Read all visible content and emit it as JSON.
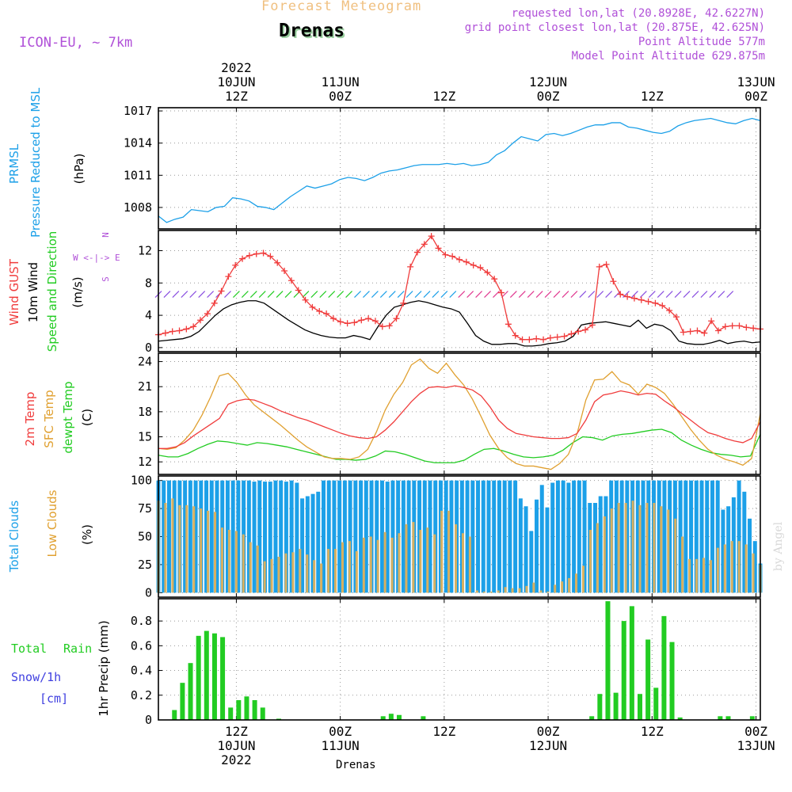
{
  "header": {
    "product": "Forecast Meteogram",
    "station": "Drenas",
    "model": "ICON-EU, ~ 7km",
    "requested": "requested lon,lat (20.8928E, 42.6227N)",
    "grid_point": "grid point closest lon,lat (20.875E, 42.625N)",
    "point_altitude": "Point Altitude 577m",
    "model_altitude": "Model Point Altitude 629.875m",
    "credit": "by Angel",
    "footer_station": "Drenas"
  },
  "colors": {
    "pressure": "#1ca0e8",
    "gust": "#f03c3c",
    "wind": "#000000",
    "wind_dir": "#22cc22",
    "temp2m": "#f03c3c",
    "sfc_temp": "#e0a030",
    "dewpt": "#22cc22",
    "total_clouds": "#1ca0e8",
    "low_clouds": "#d8b060",
    "rain": "#22cc22",
    "snow": "#4040e0",
    "header_purple": "#b050d8",
    "product_color": "#f0c080"
  },
  "time_axis": {
    "top_labels": [
      {
        "l1": "2022",
        "l2": "10JUN",
        "l3": "12Z"
      },
      {
        "l1": "",
        "l2": "11JUN",
        "l3": "00Z"
      },
      {
        "l1": "",
        "l2": "",
        "l3": "12Z"
      },
      {
        "l1": "",
        "l2": "12JUN",
        "l3": "00Z"
      },
      {
        "l1": "",
        "l2": "",
        "l3": "12Z"
      },
      {
        "l1": "",
        "l2": "13JUN",
        "l3": "00Z"
      }
    ],
    "bottom_labels": [
      {
        "l1": "12Z",
        "l2": "10JUN",
        "l3": "2022"
      },
      {
        "l1": "00Z",
        "l2": "11JUN",
        "l3": ""
      },
      {
        "l1": "12Z",
        "l2": "",
        "l3": ""
      },
      {
        "l1": "00Z",
        "l2": "12JUN",
        "l3": ""
      },
      {
        "l1": "12Z",
        "l2": "",
        "l3": ""
      },
      {
        "l1": "00Z",
        "l2": "13JUN",
        "l3": ""
      }
    ]
  },
  "panel_labels": {
    "pressure": [
      "PRMSL",
      "Pressure Reduced to MSL",
      "(hPa)"
    ],
    "wind": [
      "Wind GUST",
      "10m Wind",
      "Speed and Direction",
      "(m/s)"
    ],
    "compass": [
      "N",
      "W <-|-> E",
      "S"
    ],
    "temp": [
      "2m Temp",
      "SFC Temp",
      "dewpt Temp",
      "(C)"
    ],
    "clouds": [
      "Total Clouds",
      "Low Clouds",
      "(%)"
    ],
    "precip": [
      "Total",
      "Rain",
      "Snow/1h",
      "[cm]",
      "1hr Precip (mm)"
    ]
  },
  "chart_data": [
    {
      "type": "line",
      "title": "PRMSL Pressure Reduced to MSL",
      "ylabel": "(hPa)",
      "ylim": [
        1006,
        1017.3
      ],
      "yticks": [
        1008,
        1011,
        1014,
        1017
      ],
      "x_hours_from_10JUN00Z": [
        3,
        72.5
      ],
      "grid": true,
      "series": [
        {
          "name": "PRMSL",
          "values": [
            1007.2,
            1006.6,
            1006.9,
            1007.1,
            1007.8,
            1007.7,
            1007.6,
            1008.0,
            1008.1,
            1008.9,
            1008.8,
            1008.6,
            1008.1,
            1008.0,
            1007.8,
            1008.4,
            1009.0,
            1009.5,
            1010.0,
            1009.8,
            1010.0,
            1010.2,
            1010.6,
            1010.8,
            1010.7,
            1010.5,
            1010.8,
            1011.2,
            1011.4,
            1011.5,
            1011.7,
            1011.9,
            1012.0,
            1012.0,
            1012.0,
            1012.1,
            1012.0,
            1012.1,
            1011.9,
            1012.0,
            1012.2,
            1012.9,
            1013.3,
            1014.0,
            1014.6,
            1014.4,
            1014.2,
            1014.8,
            1014.9,
            1014.7,
            1014.9,
            1015.2,
            1015.5,
            1015.7,
            1015.7,
            1015.9,
            1015.9,
            1015.5,
            1015.4,
            1015.2,
            1015.0,
            1014.9,
            1015.1,
            1015.6,
            1015.9,
            1016.1,
            1016.2,
            1016.3,
            1016.1,
            1015.9,
            1015.8,
            1016.1,
            1016.3,
            1016.1
          ]
        }
      ]
    },
    {
      "type": "line",
      "title": "Wind GUST / 10m Wind Speed and Direction",
      "ylabel": "(m/s)",
      "ylim": [
        -0.5,
        14.5
      ],
      "yticks": [
        0,
        4,
        8,
        12
      ],
      "x_hours_from_10JUN00Z": [
        3,
        72.5
      ],
      "grid": true,
      "series": [
        {
          "name": "Wind GUST",
          "values": [
            1.6,
            1.8,
            2.0,
            2.1,
            2.3,
            2.6,
            3.4,
            4.2,
            5.5,
            7.0,
            8.8,
            10.2,
            11.0,
            11.4,
            11.6,
            11.7,
            11.3,
            10.5,
            9.5,
            8.3,
            7.1,
            5.9,
            5.0,
            4.5,
            4.2,
            3.6,
            3.2,
            3.0,
            3.1,
            3.4,
            3.6,
            3.3,
            2.6,
            2.7,
            3.6,
            5.5,
            10.0,
            11.8,
            12.8,
            13.8,
            12.3,
            11.5,
            11.3,
            10.9,
            10.6,
            10.2,
            9.9,
            9.3,
            8.5,
            6.8,
            2.9,
            1.5,
            1.0,
            1.0,
            1.1,
            1.0,
            1.2,
            1.3,
            1.4,
            1.7,
            2.0,
            2.2,
            2.8,
            10.0,
            10.3,
            8.2,
            6.6,
            6.3,
            6.1,
            5.9,
            5.7,
            5.5,
            5.2,
            4.6,
            3.8,
            1.9,
            2.0,
            2.1,
            1.8,
            3.3,
            2.1,
            2.6,
            2.7,
            2.7,
            2.5,
            2.4,
            2.3
          ]
        },
        {
          "name": "10m Wind",
          "values": [
            0.8,
            0.9,
            1.0,
            1.1,
            1.4,
            2.0,
            3.0,
            4.0,
            4.8,
            5.3,
            5.6,
            5.8,
            5.8,
            5.5,
            4.8,
            4.1,
            3.4,
            2.8,
            2.2,
            1.8,
            1.5,
            1.3,
            1.2,
            1.2,
            1.5,
            1.3,
            1.0,
            2.6,
            4.0,
            5.0,
            5.3,
            5.6,
            5.8,
            5.6,
            5.3,
            5.0,
            4.8,
            4.4,
            3.0,
            1.5,
            0.8,
            0.4,
            0.4,
            0.5,
            0.5,
            0.2,
            0.2,
            0.3,
            0.5,
            0.6,
            0.8,
            1.4,
            2.8,
            3.0,
            3.1,
            3.2,
            3.0,
            2.8,
            2.6,
            3.4,
            2.4,
            2.9,
            2.7,
            2.1,
            0.8,
            0.5,
            0.4,
            0.4,
            0.6,
            0.9,
            0.5,
            0.7,
            0.8,
            0.6,
            0.7
          ]
        }
      ],
      "wind_direction_barbs": [
        {
          "from": 3,
          "to": 12,
          "color": "#8a4fe0"
        },
        {
          "from": 12,
          "to": 26,
          "color": "#22cc22"
        },
        {
          "from": 26,
          "to": 38,
          "color": "#1ca0e8"
        },
        {
          "from": 38,
          "to": 52,
          "color": "#e03890"
        },
        {
          "from": 52,
          "to": 70,
          "color": "#8a4fe0"
        }
      ]
    },
    {
      "type": "line",
      "title": "2m Temp / SFC Temp / dewpt Temp",
      "ylabel": "(C)",
      "ylim": [
        10.5,
        25
      ],
      "yticks": [
        12,
        15,
        18,
        21,
        24
      ],
      "x_hours_from_10JUN00Z": [
        3,
        72.5
      ],
      "grid": true,
      "series": [
        {
          "name": "2m Temp",
          "values": [
            13.6,
            13.6,
            13.8,
            14.3,
            15.1,
            15.8,
            16.5,
            17.2,
            18.9,
            19.3,
            19.5,
            19.4,
            19.0,
            18.6,
            18.1,
            17.7,
            17.3,
            17.0,
            16.6,
            16.2,
            15.8,
            15.4,
            15.1,
            14.9,
            14.8,
            15.0,
            15.8,
            16.8,
            18.0,
            19.2,
            20.2,
            20.9,
            21.0,
            20.9,
            21.1,
            20.9,
            20.6,
            19.9,
            18.6,
            17.0,
            16.0,
            15.4,
            15.2,
            15.0,
            14.9,
            14.8,
            14.8,
            14.9,
            15.4,
            17.0,
            19.2,
            20.0,
            20.2,
            20.5,
            20.3,
            20.0,
            20.2,
            20.1,
            19.3,
            18.6,
            17.8,
            17.0,
            16.2,
            15.5,
            15.2,
            14.8,
            14.5,
            14.3,
            14.8,
            16.8
          ]
        },
        {
          "name": "SFC Temp",
          "values": [
            13.6,
            13.5,
            13.7,
            14.6,
            15.8,
            17.6,
            19.8,
            22.3,
            22.6,
            21.5,
            20.0,
            18.8,
            18.0,
            17.2,
            16.4,
            15.5,
            14.6,
            13.8,
            13.2,
            12.6,
            12.4,
            12.4,
            12.3,
            12.6,
            13.5,
            15.6,
            18.2,
            20.1,
            21.5,
            23.6,
            24.3,
            23.2,
            22.6,
            23.8,
            22.4,
            21.2,
            19.5,
            17.4,
            15.2,
            13.6,
            12.5,
            11.8,
            11.5,
            11.5,
            11.3,
            11.1,
            11.8,
            12.9,
            15.4,
            19.4,
            21.8,
            21.9,
            22.8,
            21.6,
            21.2,
            20.1,
            21.3,
            20.9,
            20.2,
            18.9,
            17.4,
            15.9,
            14.6,
            13.5,
            12.8,
            12.3,
            12.0,
            11.6,
            12.4,
            17.8
          ]
        },
        {
          "name": "dewpt Temp",
          "values": [
            12.8,
            12.6,
            12.6,
            13.0,
            13.6,
            14.1,
            14.5,
            14.4,
            14.2,
            14.0,
            14.3,
            14.2,
            14.0,
            13.8,
            13.5,
            13.2,
            12.9,
            12.6,
            12.3,
            12.3,
            12.2,
            12.3,
            12.7,
            13.3,
            13.2,
            12.9,
            12.5,
            12.1,
            11.9,
            11.9,
            11.9,
            12.2,
            12.9,
            13.5,
            13.6,
            13.3,
            12.9,
            12.6,
            12.5,
            12.6,
            12.8,
            13.4,
            14.3,
            15.0,
            14.9,
            14.6,
            15.1,
            15.3,
            15.4,
            15.6,
            15.8,
            15.9,
            15.5,
            14.6,
            14.0,
            13.5,
            13.1,
            12.9,
            12.8,
            12.6,
            12.7,
            15.3
          ]
        }
      ]
    },
    {
      "type": "bar",
      "title": "Total Clouds / Low Clouds",
      "ylabel": "(%)",
      "ylim": [
        -4,
        104
      ],
      "yticks": [
        0,
        25,
        50,
        75,
        100
      ],
      "x_hours_from_10JUN00Z": [
        3,
        72.5
      ],
      "grid": true,
      "series": [
        {
          "name": "Total Clouds",
          "values": [
            100,
            100,
            100,
            100,
            100,
            100,
            100,
            100,
            100,
            100,
            100,
            100,
            100,
            100,
            100,
            100,
            100,
            100,
            99,
            100,
            99,
            99,
            100,
            100,
            99,
            100,
            98,
            84,
            86,
            88,
            90,
            100,
            100,
            100,
            100,
            100,
            100,
            100,
            100,
            100,
            100,
            100,
            100,
            99,
            100,
            100,
            100,
            100,
            100,
            100,
            100,
            100,
            100,
            100,
            100,
            100,
            100,
            100,
            100,
            100,
            100,
            100,
            100,
            100,
            100,
            100,
            100,
            100,
            84,
            77,
            55,
            83,
            96,
            76,
            98,
            100,
            100,
            98,
            100,
            100,
            100,
            80,
            80,
            86,
            86,
            100,
            100,
            100,
            100,
            100,
            100,
            100,
            100,
            100,
            100,
            100,
            100,
            100,
            100,
            100,
            100,
            100,
            100,
            100,
            100,
            100,
            74,
            77,
            85,
            100,
            90,
            66,
            46,
            26
          ]
        },
        {
          "name": "Low Clouds",
          "values": [
            82,
            80,
            84,
            78,
            78,
            77,
            75,
            73,
            72,
            58,
            56,
            55,
            52,
            45,
            42,
            28,
            30,
            32,
            35,
            36,
            39,
            34,
            29,
            26,
            39,
            39,
            45,
            46,
            37,
            49,
            50,
            47,
            54,
            49,
            53,
            61,
            63,
            56,
            58,
            52,
            73,
            73,
            61,
            53,
            50,
            2,
            1,
            1,
            2,
            5,
            4,
            4,
            6,
            9,
            2,
            1,
            7,
            10,
            13,
            17,
            24,
            56,
            62,
            68,
            75,
            80,
            80,
            82,
            78,
            80,
            80,
            77,
            74,
            66,
            50,
            30,
            30,
            31,
            29,
            40,
            43,
            46,
            46,
            43,
            35,
            25
          ]
        }
      ]
    },
    {
      "type": "bar",
      "title": "1hr Precip (mm)",
      "ylabel": "1hr Precip (mm)",
      "ylim": [
        0,
        0.98
      ],
      "yticks": [
        0,
        0.2,
        0.4,
        0.6,
        0.8
      ],
      "x_hours_from_10JUN00Z": [
        3,
        72.5
      ],
      "grid": true,
      "series": [
        {
          "name": "Total Rain",
          "values": [
            0,
            0,
            0.08,
            0.3,
            0.46,
            0.68,
            0.72,
            0.7,
            0.67,
            0.1,
            0.16,
            0.19,
            0.16,
            0.1,
            0,
            0.01,
            0,
            0,
            0,
            0,
            0,
            0,
            0,
            0,
            0,
            0,
            0,
            0,
            0.03,
            0.05,
            0.04,
            0,
            0,
            0.03,
            0,
            0,
            0,
            0,
            0,
            0,
            0,
            0,
            0,
            0,
            0,
            0,
            0,
            0,
            0,
            0,
            0,
            0,
            0,
            0,
            0.03,
            0.21,
            0.96,
            0.22,
            0.8,
            0.92,
            0.21,
            0.65,
            0.26,
            0.84,
            0.63,
            0.02,
            0,
            0,
            0,
            0,
            0.03,
            0.03,
            0,
            0,
            0.03,
            0
          ]
        },
        {
          "name": "Snow/1h",
          "values": []
        }
      ]
    }
  ]
}
